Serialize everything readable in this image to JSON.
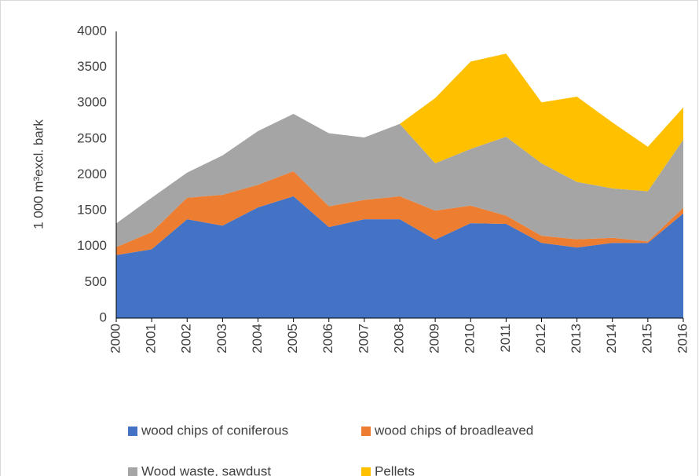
{
  "chart_data": {
    "type": "stacked_area",
    "y_label": "1 000 m³excl. bark",
    "categories": [
      "2000",
      "2001",
      "2002",
      "2003",
      "2004",
      "2005",
      "2006",
      "2007",
      "2008",
      "2009",
      "2010",
      "2011",
      "2012",
      "2013",
      "2014",
      "2015",
      "2016"
    ],
    "series": [
      {
        "name": "wood chips of coniferous",
        "color": "#4472c4",
        "values": [
          880,
          960,
          1380,
          1290,
          1545,
          1700,
          1270,
          1380,
          1380,
          1095,
          1325,
          1315,
          1050,
          985,
          1050,
          1050,
          1460
        ]
      },
      {
        "name": "wood chips of broadleaved",
        "color": "#ed7d31",
        "values": [
          110,
          240,
          300,
          430,
          315,
          350,
          290,
          270,
          320,
          405,
          245,
          115,
          100,
          115,
          70,
          20,
          80
        ]
      },
      {
        "name": "Wood waste, sawdust",
        "color": "#a5a5a5",
        "values": [
          330,
          480,
          350,
          550,
          750,
          800,
          1020,
          870,
          1010,
          660,
          790,
          1100,
          1010,
          800,
          690,
          700,
          950
        ]
      },
      {
        "name": "Pellets",
        "color": "#ffc000",
        "values": [
          null,
          null,
          null,
          null,
          null,
          null,
          null,
          null,
          0,
          910,
          1220,
          1160,
          850,
          1190,
          920,
          620,
          450
        ]
      }
    ],
    "ylim": [
      0,
      4000
    ],
    "yticks": [
      0,
      500,
      1000,
      1500,
      2000,
      2500,
      3000,
      3500,
      4000
    ],
    "grid": false
  }
}
